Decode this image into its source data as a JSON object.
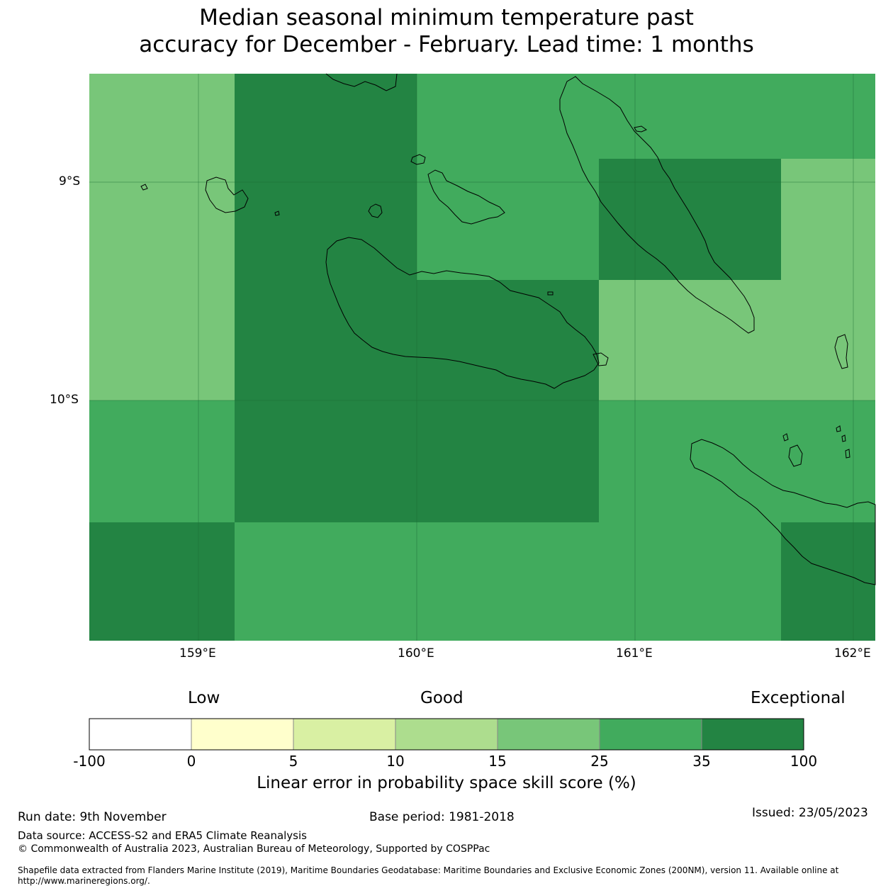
{
  "title": {
    "line1": "Median seasonal minimum temperature past",
    "line2": "accuracy for December - February. Lead time: 1 months"
  },
  "map": {
    "lat_labels": [
      "9°S",
      "10°S"
    ],
    "lon_labels": [
      "159°E",
      "160°E",
      "161°E",
      "162°E"
    ],
    "colors": {
      "lvl15_25": "#78c679",
      "lvl25_35": "#41ab5d",
      "lvl35_100": "#238443",
      "coastline": "#000000"
    },
    "grid_cells": [
      {
        "lon": [
          158.5,
          159.17
        ],
        "lat": [
          -9.33,
          -8.5
        ],
        "level": "15-25"
      },
      {
        "lon": [
          159.17,
          160.0
        ],
        "lat": [
          -9.33,
          -8.5
        ],
        "level": "35-100"
      },
      {
        "lon": [
          160.0,
          161.67
        ],
        "lat": [
          -8.9,
          -8.5
        ],
        "level": "25-35"
      },
      {
        "lon": [
          161.67,
          162.1
        ],
        "lat": [
          -8.9,
          -8.5
        ],
        "level": "25-35"
      }
    ]
  },
  "colorbar": {
    "words": {
      "low": "Low",
      "good": "Good",
      "exceptional": "Exceptional"
    },
    "bins": [
      {
        "from": "-100",
        "to": "0",
        "color": "#ffffff"
      },
      {
        "from": "0",
        "to": "5",
        "color": "#ffffcc"
      },
      {
        "from": "5",
        "to": "10",
        "color": "#d9f0a3"
      },
      {
        "from": "10",
        "to": "15",
        "color": "#addd8e"
      },
      {
        "from": "15",
        "to": "25",
        "color": "#78c679"
      },
      {
        "from": "25",
        "to": "35",
        "color": "#41ab5d"
      },
      {
        "from": "35",
        "to": "100",
        "color": "#238443"
      }
    ],
    "ticks": [
      "-100",
      "0",
      "5",
      "10",
      "15",
      "25",
      "35",
      "100"
    ],
    "label": "Linear error in probability space skill score (%)"
  },
  "footer": {
    "run_date": "Run date: 9th November",
    "base_period": "Base period: 1981-2018",
    "issued": "Issued: 23/05/2023",
    "data_source": "Data source: ACCESS-S2 and ERA5 Climate Reanalysis",
    "copyright": "© Commonwealth of Australia 2023, Australian Bureau of Meteorology, Supported by COSPPac",
    "shapefile": "Shapefile data extracted from Flanders Marine Institute (2019), Maritime Boundaries Geodatabase: Maritime Boundaries and Exclusive Economic Zones (200NM), version 11. Available online at http://www.marineregions.org/."
  }
}
